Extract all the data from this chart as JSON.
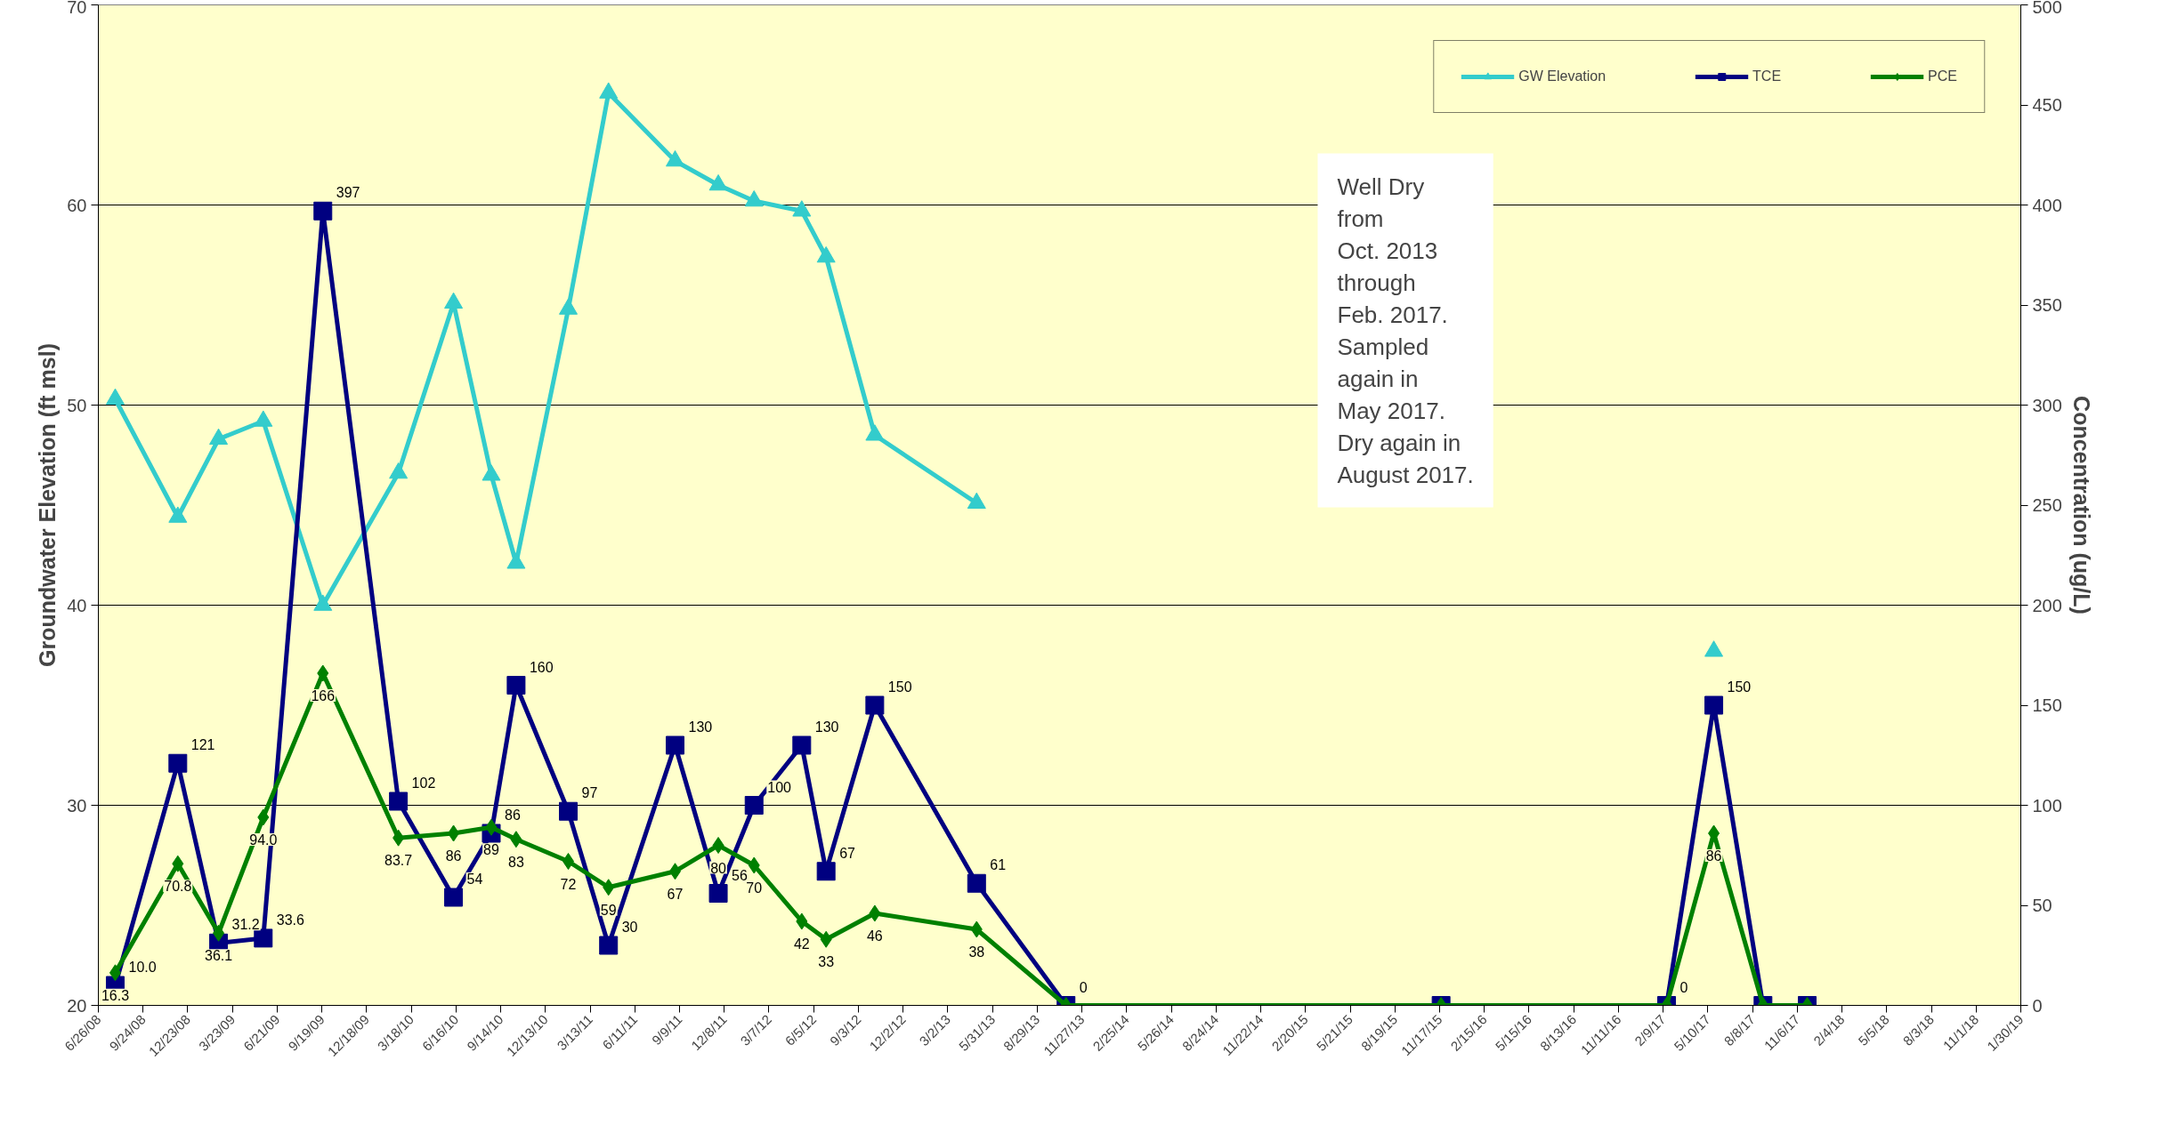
{
  "chart_data": {
    "type": "line",
    "x": [
      "2008-07-30",
      "2008-12-03",
      "2009-02-23",
      "2009-05-24",
      "2009-09-21",
      "2010-02-20",
      "2010-06-11",
      "2010-08-26",
      "2010-10-15",
      "2011-01-28",
      "2011-04-19",
      "2011-08-31",
      "2011-11-26",
      "2012-02-06",
      "2012-05-12",
      "2012-06-30",
      "2012-10-06",
      "2013-04-29",
      "2013-10-26",
      "2015-11-20",
      "2017-02-16",
      "2017-05-22",
      "2017-08-29",
      "2017-11-26"
    ],
    "series": [
      {
        "name": "GW Elevation",
        "color": "#33cccc",
        "marker": "triangle",
        "values": [
          50.3,
          44.4,
          48.3,
          49.2,
          40.0,
          46.6,
          55.1,
          46.5,
          42.1,
          54.8,
          65.6,
          62.2,
          61.0,
          60.2,
          59.7,
          57.4,
          48.5,
          45.1,
          null,
          null,
          null,
          37.7,
          null,
          null
        ]
      },
      {
        "name": "TCE",
        "color": "#000080",
        "marker": "square",
        "axis": "y2",
        "values": [
          10.0,
          121,
          31.2,
          33.6,
          397,
          102,
          54,
          86,
          160,
          97,
          30,
          130,
          56,
          100,
          130,
          67,
          150,
          61,
          0,
          0,
          0,
          150,
          0,
          0
        ],
        "value_labels": [
          "10.0",
          "121",
          "31.2",
          "33.6",
          "397",
          "102",
          "54",
          "86",
          "160",
          "97",
          "30",
          "130",
          "56",
          "100",
          "130",
          "67",
          "150",
          "61",
          "0",
          null,
          "0",
          "150",
          null,
          null
        ]
      },
      {
        "name": "PCE",
        "color": "#008000",
        "marker": "diamond",
        "axis": "y2",
        "values": [
          16.3,
          70.8,
          36.1,
          94.0,
          166,
          83.7,
          86,
          89,
          83,
          72,
          59,
          67,
          80,
          70,
          42,
          33,
          46,
          38,
          0,
          0,
          0,
          86,
          0,
          0
        ],
        "value_labels": [
          "16.3",
          "70.8",
          "36.1",
          "94.0",
          "166",
          "83.7",
          "86",
          "89",
          "83",
          "72",
          "59",
          "67",
          "80",
          "70",
          "42",
          "33",
          "46",
          "38",
          null,
          null,
          null,
          "86",
          null,
          null
        ]
      }
    ],
    "ylabel": "Groundwater Elevation (ft msl)",
    "y2label": "Concentration (ug/L)",
    "ylim": [
      20,
      70
    ],
    "yticks": [
      20,
      30,
      40,
      50,
      60,
      70
    ],
    "y2lim": [
      0,
      500
    ],
    "y2ticks": [
      0,
      50,
      100,
      150,
      200,
      250,
      300,
      350,
      400,
      450,
      500
    ],
    "xlim": [
      "2008-06-26",
      "2019-01-30"
    ],
    "xticks": [
      {
        "value": "2008-06-26",
        "label": "6/26/08"
      },
      {
        "value": "2008-09-24",
        "label": "9/24/08"
      },
      {
        "value": "2008-12-23",
        "label": "12/23/08"
      },
      {
        "value": "2009-03-23",
        "label": "3/23/09"
      },
      {
        "value": "2009-06-21",
        "label": "6/21/09"
      },
      {
        "value": "2009-09-19",
        "label": "9/19/09"
      },
      {
        "value": "2009-12-18",
        "label": "12/18/09"
      },
      {
        "value": "2010-03-18",
        "label": "3/18/10"
      },
      {
        "value": "2010-06-16",
        "label": "6/16/10"
      },
      {
        "value": "2010-09-14",
        "label": "9/14/10"
      },
      {
        "value": "2010-12-13",
        "label": "12/13/10"
      },
      {
        "value": "2011-03-13",
        "label": "3/13/11"
      },
      {
        "value": "2011-06-11",
        "label": "6/11/11"
      },
      {
        "value": "2011-09-09",
        "label": "9/9/11"
      },
      {
        "value": "2011-12-08",
        "label": "12/8/11"
      },
      {
        "value": "2012-03-07",
        "label": "3/7/12"
      },
      {
        "value": "2012-06-05",
        "label": "6/5/12"
      },
      {
        "value": "2012-09-03",
        "label": "9/3/12"
      },
      {
        "value": "2012-12-02",
        "label": "12/2/12"
      },
      {
        "value": "2013-03-02",
        "label": "3/2/13"
      },
      {
        "value": "2013-05-31",
        "label": "5/31/13"
      },
      {
        "value": "2013-08-29",
        "label": "8/29/13"
      },
      {
        "value": "2013-11-27",
        "label": "11/27/13"
      },
      {
        "value": "2014-02-25",
        "label": "2/25/14"
      },
      {
        "value": "2014-05-26",
        "label": "5/26/14"
      },
      {
        "value": "2014-08-24",
        "label": "8/24/14"
      },
      {
        "value": "2014-11-22",
        "label": "11/22/14"
      },
      {
        "value": "2015-02-20",
        "label": "2/20/15"
      },
      {
        "value": "2015-05-21",
        "label": "5/21/15"
      },
      {
        "value": "2015-08-19",
        "label": "8/19/15"
      },
      {
        "value": "2015-11-17",
        "label": "11/17/15"
      },
      {
        "value": "2016-02-15",
        "label": "2/15/16"
      },
      {
        "value": "2016-05-15",
        "label": "5/15/16"
      },
      {
        "value": "2016-08-13",
        "label": "8/13/16"
      },
      {
        "value": "2016-11-11",
        "label": "11/11/16"
      },
      {
        "value": "2017-02-09",
        "label": "2/9/17"
      },
      {
        "value": "2017-05-10",
        "label": "5/10/17"
      },
      {
        "value": "2017-08-08",
        "label": "8/8/17"
      },
      {
        "value": "2017-11-06",
        "label": "11/6/17"
      },
      {
        "value": "2018-02-04",
        "label": "2/4/18"
      },
      {
        "value": "2018-05-05",
        "label": "5/5/18"
      },
      {
        "value": "2018-08-03",
        "label": "8/3/18"
      },
      {
        "value": "2018-11-01",
        "label": "11/1/18"
      },
      {
        "value": "2019-01-30",
        "label": "1/30/19"
      }
    ],
    "annotations": [
      "Well Dry\nfrom\nOct. 2013\nthrough\nFeb. 2017.\nSampled\nagain in\nMay 2017.\nDry again in\nAugust 2017."
    ],
    "grid": "y",
    "legend": "top right",
    "line_style": "solid"
  }
}
